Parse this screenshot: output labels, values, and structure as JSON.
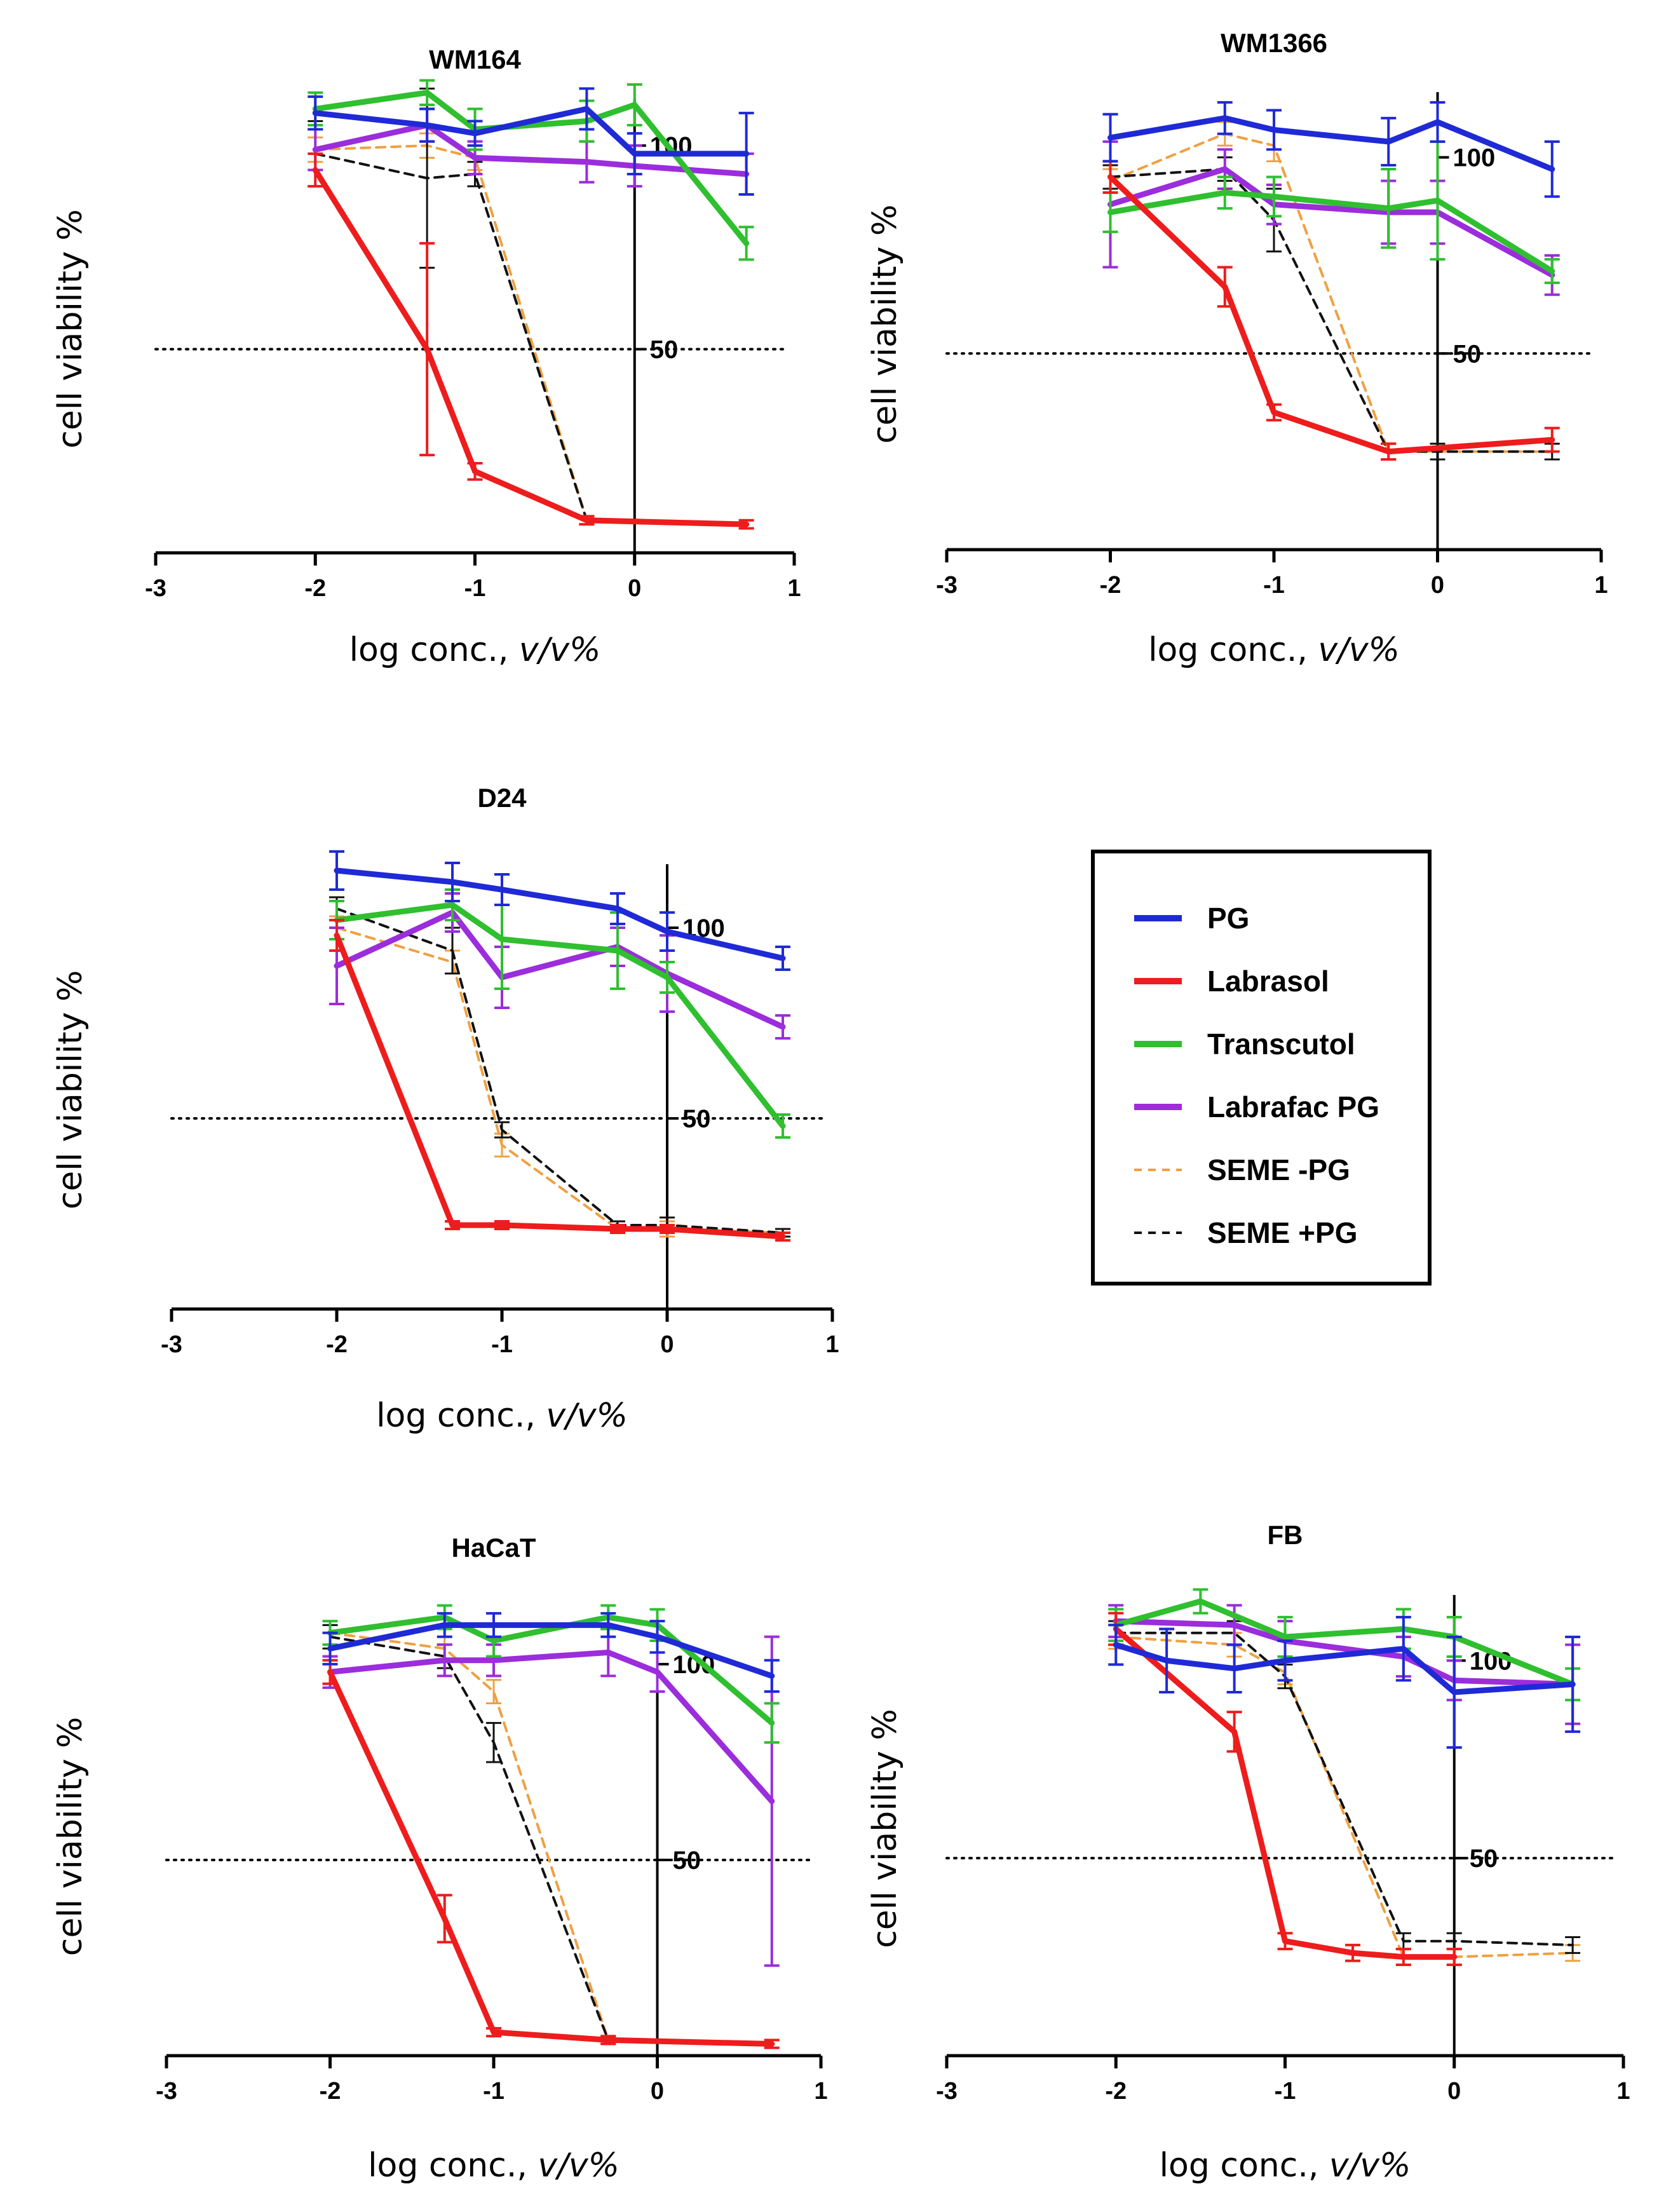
{
  "legend": {
    "items": [
      {
        "name": "PG",
        "color": "#1f2ad6",
        "dash": false
      },
      {
        "name": "Labrasol",
        "color": "#ee1c1c",
        "dash": false
      },
      {
        "name": "Transcutol",
        "color": "#2fbf2f",
        "dash": false
      },
      {
        "name": "Labrafac PG",
        "color": "#9b2ddc",
        "dash": false
      },
      {
        "name": "SEME -PG",
        "color": "#f0a040",
        "dash": true
      },
      {
        "name": "SEME +PG",
        "color": "#111111",
        "dash": true
      }
    ]
  },
  "chart_data": [
    {
      "type": "line",
      "title": "WM164",
      "xlabel": "log conc., ",
      "xlabel_italic": "v/v%",
      "ylabel": "cell viability %",
      "xlim": [
        -3,
        1
      ],
      "ylim": [
        0,
        110
      ],
      "xticks": [
        "-3",
        "-2",
        "-1",
        "0",
        "1"
      ],
      "yticks": [
        "50",
        "100"
      ],
      "threshold": 50,
      "series": [
        {
          "name": "PG",
          "x": [
            -2,
            -1.3,
            -1,
            -0.3,
            0,
            0.7
          ],
          "y": [
            108,
            105,
            103,
            109,
            98,
            98
          ],
          "err": [
            4,
            4,
            3,
            5,
            5,
            10
          ]
        },
        {
          "name": "Labrasol",
          "x": [
            -2,
            -1.3,
            -1,
            -0.3,
            0.7
          ],
          "y": [
            94,
            50,
            20,
            8,
            7
          ],
          "err": [
            4,
            26,
            2,
            1,
            1
          ]
        },
        {
          "name": "Transcutol",
          "x": [
            -2,
            -1.3,
            -1,
            -0.3,
            0,
            0.7
          ],
          "y": [
            109,
            113,
            104,
            106,
            110,
            76
          ],
          "err": [
            4,
            3,
            5,
            5,
            5,
            4
          ]
        },
        {
          "name": "Labrafac PG",
          "x": [
            -2,
            -1.3,
            -1,
            -0.3,
            0,
            0.7
          ],
          "y": [
            99,
            105,
            97,
            96,
            95,
            93
          ],
          "err": [
            5,
            4,
            4,
            5,
            5,
            5
          ]
        },
        {
          "name": "SEME -PG",
          "x": [
            -2,
            -1.3,
            -1,
            -0.3
          ],
          "y": [
            99,
            100,
            97,
            8
          ],
          "err": [
            3,
            3,
            3,
            1
          ]
        },
        {
          "name": "SEME +PG",
          "x": [
            -2,
            -1.3,
            -1,
            -0.3
          ],
          "y": [
            98,
            92,
            93,
            8
          ],
          "err": [
            8,
            22,
            3,
            1
          ]
        }
      ]
    },
    {
      "type": "line",
      "title": "WM1366",
      "xlabel": "log conc., ",
      "xlabel_italic": "v/v%",
      "ylabel": "cell viability %",
      "xlim": [
        -3,
        1
      ],
      "ylim": [
        0,
        115
      ],
      "xticks": [
        "-3",
        "-2",
        "-1",
        "0",
        "1"
      ],
      "yticks": [
        "50",
        "100"
      ],
      "threshold": 50,
      "series": [
        {
          "name": "PG",
          "x": [
            -2,
            -1.3,
            -1,
            -0.3,
            0,
            0.7
          ],
          "y": [
            105,
            110,
            107,
            104,
            109,
            97
          ],
          "err": [
            6,
            4,
            5,
            6,
            5,
            7
          ]
        },
        {
          "name": "Labrasol",
          "x": [
            -2,
            -1.3,
            -1,
            -0.3,
            0.7
          ],
          "y": [
            95,
            67,
            35,
            25,
            28
          ],
          "err": [
            4,
            5,
            2,
            2,
            3
          ]
        },
        {
          "name": "Transcutol",
          "x": [
            -2,
            -1.3,
            -1,
            -0.3,
            0,
            0.7
          ],
          "y": [
            86,
            91,
            90,
            87,
            89,
            71
          ],
          "err": [
            5,
            4,
            5,
            10,
            15,
            3
          ]
        },
        {
          "name": "Labrafac PG",
          "x": [
            -2,
            -1.3,
            -1,
            -0.3,
            0,
            0.7
          ],
          "y": [
            88,
            97,
            88,
            86,
            86,
            70
          ],
          "err": [
            16,
            5,
            5,
            8,
            8,
            5
          ]
        },
        {
          "name": "SEME -PG",
          "x": [
            -2,
            -1.3,
            -1,
            -0.3,
            0,
            0.7
          ],
          "y": [
            94,
            106,
            103,
            25,
            25,
            25
          ],
          "err": [
            3,
            3,
            4,
            2,
            2,
            2
          ]
        },
        {
          "name": "SEME +PG",
          "x": [
            -2,
            -1.3,
            -1,
            -0.3,
            0,
            0.7
          ],
          "y": [
            95,
            97,
            84,
            25,
            25,
            25
          ],
          "err": [
            3,
            3,
            8,
            2,
            2,
            2
          ]
        }
      ]
    },
    {
      "type": "line",
      "title": "D24",
      "xlabel": "log conc., ",
      "xlabel_italic": "v/v%",
      "ylabel": "cell viability %",
      "xlim": [
        -3,
        1
      ],
      "ylim": [
        0,
        115
      ],
      "xticks": [
        "-3",
        "-2",
        "-1",
        "0",
        "1"
      ],
      "yticks": [
        "50",
        "100"
      ],
      "threshold": 50,
      "series": [
        {
          "name": "PG",
          "x": [
            -2,
            -1.3,
            -1,
            -0.3,
            0,
            0.7
          ],
          "y": [
            115,
            112,
            110,
            105,
            99,
            92
          ],
          "err": [
            5,
            5,
            4,
            4,
            5,
            3
          ]
        },
        {
          "name": "Labrasol",
          "x": [
            -2,
            -1.3,
            -1,
            -0.3,
            0,
            0.7
          ],
          "y": [
            98,
            22,
            22,
            21,
            21,
            19
          ],
          "err": [
            4,
            1,
            1,
            1,
            1,
            1
          ]
        },
        {
          "name": "Transcutol",
          "x": [
            -2,
            -1.3,
            -1,
            -0.3,
            0,
            0.7
          ],
          "y": [
            102,
            106,
            97,
            94,
            87,
            48
          ],
          "err": [
            5,
            4,
            13,
            10,
            4,
            3
          ]
        },
        {
          "name": "Labrafac PG",
          "x": [
            -2,
            -1.3,
            -1,
            -0.3,
            0,
            0.7
          ],
          "y": [
            90,
            104,
            87,
            95,
            88,
            74
          ],
          "err": [
            10,
            5,
            8,
            5,
            10,
            3
          ]
        },
        {
          "name": "SEME -PG",
          "x": [
            -2,
            -1.3,
            -1,
            -0.3,
            0,
            0.7
          ],
          "y": [
            100,
            91,
            43,
            21,
            21,
            20
          ],
          "err": [
            3,
            3,
            3,
            1,
            2,
            1
          ]
        },
        {
          "name": "SEME +PG",
          "x": [
            -2,
            -1.3,
            -1,
            -0.3,
            0,
            0.7
          ],
          "y": [
            105,
            94,
            47,
            22,
            22,
            20
          ],
          "err": [
            3,
            6,
            2,
            1,
            2,
            1
          ]
        }
      ]
    },
    {
      "type": "line",
      "title": "HaCaT",
      "xlabel": "log conc., ",
      "xlabel_italic": "v/v%",
      "ylabel": "cell viability %",
      "xlim": [
        -3,
        1
      ],
      "ylim": [
        0,
        112
      ],
      "xticks": [
        "-3",
        "-2",
        "-1",
        "0",
        "1"
      ],
      "yticks": [
        "50",
        "100"
      ],
      "threshold": 50,
      "series": [
        {
          "name": "PG",
          "x": [
            -2,
            -1.3,
            -1,
            -0.3,
            0,
            0.7
          ],
          "y": [
            104,
            110,
            110,
            110,
            107,
            97
          ],
          "err": [
            4,
            3,
            3,
            3,
            4,
            4
          ]
        },
        {
          "name": "Labrasol",
          "x": [
            -2,
            -1.3,
            -1,
            -0.3,
            0.7
          ],
          "y": [
            98,
            35,
            6,
            4,
            3
          ],
          "err": [
            3,
            6,
            1,
            1,
            1
          ]
        },
        {
          "name": "Transcutol",
          "x": [
            -2,
            -1.3,
            -1,
            -0.3,
            0,
            0.7
          ],
          "y": [
            108,
            112,
            106,
            112,
            110,
            85
          ],
          "err": [
            3,
            3,
            4,
            3,
            4,
            5
          ]
        },
        {
          "name": "Labrafac PG",
          "x": [
            -2,
            -1.3,
            -1,
            -0.3,
            0,
            0.7
          ],
          "y": [
            98,
            101,
            101,
            103,
            98,
            65
          ],
          "err": [
            4,
            4,
            4,
            6,
            5,
            42
          ]
        },
        {
          "name": "SEME -PG",
          "x": [
            -2,
            -1.3,
            -1,
            -0.3
          ],
          "y": [
            108,
            104,
            93,
            4
          ],
          "err": [
            3,
            3,
            3,
            1
          ]
        },
        {
          "name": "SEME +PG",
          "x": [
            -2,
            -1.3,
            -1,
            -0.3
          ],
          "y": [
            107,
            102,
            80,
            4
          ],
          "err": [
            3,
            3,
            5,
            1
          ]
        }
      ]
    },
    {
      "type": "line",
      "title": "FB",
      "xlabel": "log conc., ",
      "xlabel_italic": "v/v%",
      "ylabel": "cell viability %",
      "xlim": [
        -3,
        1
      ],
      "ylim": [
        0,
        115
      ],
      "xticks": [
        "-3",
        "-2",
        "-1",
        "0",
        "1"
      ],
      "yticks": [
        "50",
        "100"
      ],
      "threshold": 50,
      "series": [
        {
          "name": "PG",
          "x": [
            -2,
            -1.7,
            -1.3,
            -1,
            -0.3,
            0,
            0.7
          ],
          "y": [
            104,
            100,
            98,
            100,
            103,
            92,
            94
          ],
          "err": [
            5,
            8,
            6,
            5,
            8,
            14,
            12
          ]
        },
        {
          "name": "Labrasol",
          "x": [
            -2,
            -1.3,
            -1,
            -0.6,
            -0.3,
            0
          ],
          "y": [
            108,
            82,
            29,
            26,
            25,
            25
          ],
          "err": [
            4,
            5,
            2,
            2,
            2,
            2
          ]
        },
        {
          "name": "Transcutol",
          "x": [
            -2,
            -1.5,
            -1,
            -0.3,
            0,
            0.7
          ],
          "y": [
            109,
            115,
            106,
            108,
            106,
            94
          ],
          "err": [
            4,
            3,
            5,
            5,
            5,
            4
          ]
        },
        {
          "name": "Labrafac PG",
          "x": [
            -2,
            -1.3,
            -1,
            -0.3,
            0,
            0.7
          ],
          "y": [
            110,
            109,
            105,
            101,
            95,
            94
          ],
          "err": [
            4,
            5,
            5,
            5,
            5,
            10
          ]
        },
        {
          "name": "SEME -PG",
          "x": [
            -2,
            -1.3,
            -1,
            -0.3,
            0,
            0.7
          ],
          "y": [
            106,
            104,
            97,
            25,
            25,
            26
          ],
          "err": [
            3,
            3,
            3,
            2,
            2,
            2
          ]
        },
        {
          "name": "SEME +PG",
          "x": [
            -2,
            -1.3,
            -1,
            -0.3,
            0,
            0.7
          ],
          "y": [
            107,
            107,
            96,
            29,
            29,
            28
          ],
          "err": [
            3,
            3,
            3,
            2,
            2,
            2
          ]
        }
      ]
    }
  ]
}
